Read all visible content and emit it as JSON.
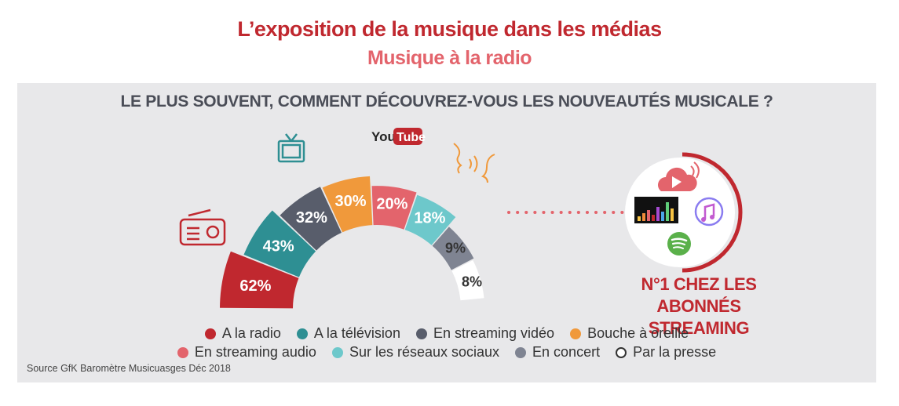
{
  "title": "L’exposition de la musique dans les médias",
  "subtitle": "Musique à la radio",
  "question": "LE PLUS SOUVENT, COMMENT DÉCOUVREZ-VOUS LES NOUVEAUTÉS MUSICALE ?",
  "source": "Source GfK Baromètre Musicuasges Déc 2018",
  "callout": {
    "line1": "N°1 CHEZ LES",
    "line2": "ABONNÉS STREAMING"
  },
  "youtube_logo": {
    "you": "You",
    "tube": "Tube"
  },
  "chart_data": {
    "type": "bar",
    "title": "LE PLUS SOUVENT, COMMENT DÉCOUVREZ-VOUS LES NOUVEAUTÉS MUSICALE ?",
    "xlabel": "",
    "ylabel": "",
    "unit": "%",
    "categories": [
      "A la radio",
      "A la télévision",
      "En streaming vidéo",
      "Bouche à oreille",
      "En streaming audio",
      "Sur les réseaux sociaux",
      "En concert",
      "Par la presse"
    ],
    "values": [
      62,
      43,
      32,
      30,
      20,
      18,
      9,
      8
    ],
    "labels": [
      "62%",
      "43%",
      "32%",
      "30%",
      "20%",
      "18%",
      "9%",
      "8%"
    ],
    "colors": [
      "#c0282f",
      "#2e8f93",
      "#585d6b",
      "#f0993b",
      "#e3646c",
      "#6dc8cb",
      "#7f8492",
      "#ffffff"
    ],
    "legend_position": "bottom",
    "highlight": "En streaming audio"
  },
  "icons": [
    "radio-icon",
    "tv-icon",
    "youtube-logo",
    "mouth-ear-icon",
    "streaming-apps-badge",
    "cloud-play-icon",
    "equalizer-logo",
    "music-note-icon",
    "spotify-icon"
  ]
}
